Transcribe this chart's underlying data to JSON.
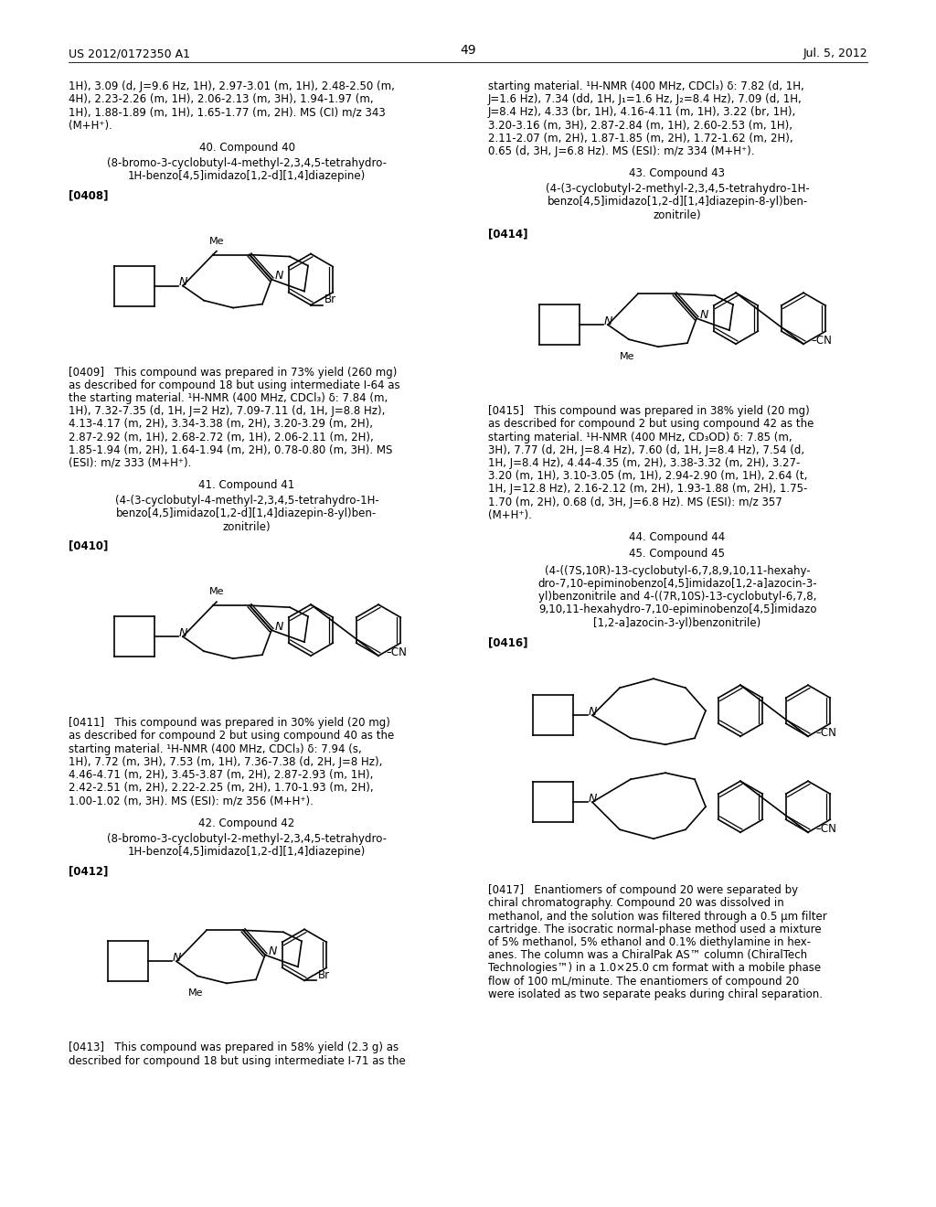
{
  "page_num": "49",
  "patent_num": "US 2012/0172350 A1",
  "patent_date": "Jul. 5, 2012",
  "bg": "#ffffff",
  "tc": "#000000",
  "fs": 8.5,
  "lh": 0.0118
}
